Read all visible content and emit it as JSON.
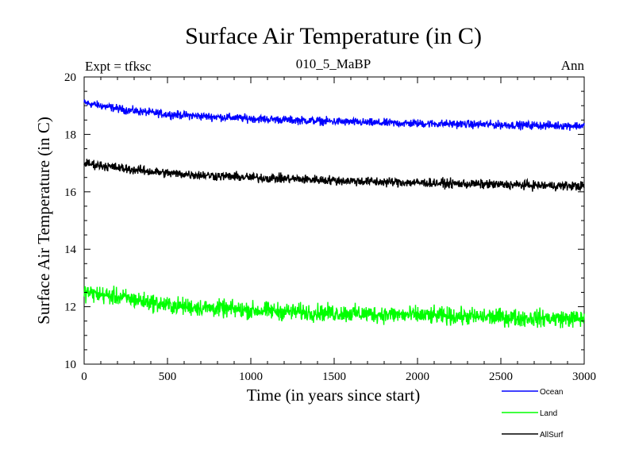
{
  "chart_data": {
    "type": "line",
    "title": "Surface Air Temperature (in C)",
    "subtitle_left": "Expt = tfksc",
    "subtitle_center": "010_5_MaBP",
    "subtitle_right": "Ann",
    "xlabel": "Time (in years since start)",
    "ylabel": "Surface Air Temperature (in C)",
    "xlim": [
      0,
      3000
    ],
    "ylim": [
      10,
      20
    ],
    "xticks": [
      0,
      500,
      1000,
      1500,
      2000,
      2500,
      3000
    ],
    "yticks": [
      10,
      12,
      14,
      16,
      18,
      20
    ],
    "xtick_labels": [
      "0",
      "500",
      "1000",
      "1500",
      "2000",
      "2500",
      "3000"
    ],
    "ytick_labels": [
      "10",
      "12",
      "14",
      "16",
      "18",
      "20"
    ],
    "grid": false,
    "legend_position": "bottom-right",
    "series": [
      {
        "name": "Ocean",
        "color": "#0000ff",
        "x": [
          0,
          250,
          500,
          750,
          1000,
          1250,
          1500,
          1750,
          2000,
          2250,
          2500,
          2750,
          3000
        ],
        "values": [
          19.1,
          18.85,
          18.7,
          18.62,
          18.55,
          18.5,
          18.45,
          18.4,
          18.38,
          18.36,
          18.33,
          18.31,
          18.3
        ],
        "noise": 0.07
      },
      {
        "name": "Land",
        "color": "#00ff00",
        "x": [
          0,
          250,
          500,
          750,
          1000,
          1250,
          1500,
          1750,
          2000,
          2250,
          2500,
          2750,
          3000
        ],
        "values": [
          12.5,
          12.3,
          12.05,
          11.95,
          11.88,
          11.82,
          11.78,
          11.74,
          11.7,
          11.66,
          11.63,
          11.6,
          11.58
        ],
        "noise": 0.15
      },
      {
        "name": "AllSurf",
        "color": "#000000",
        "x": [
          0,
          250,
          500,
          750,
          1000,
          1250,
          1500,
          1750,
          2000,
          2250,
          2500,
          2750,
          3000
        ],
        "values": [
          17.0,
          16.8,
          16.65,
          16.57,
          16.5,
          16.45,
          16.4,
          16.35,
          16.32,
          16.28,
          16.25,
          16.22,
          16.2
        ],
        "noise": 0.08
      }
    ]
  }
}
